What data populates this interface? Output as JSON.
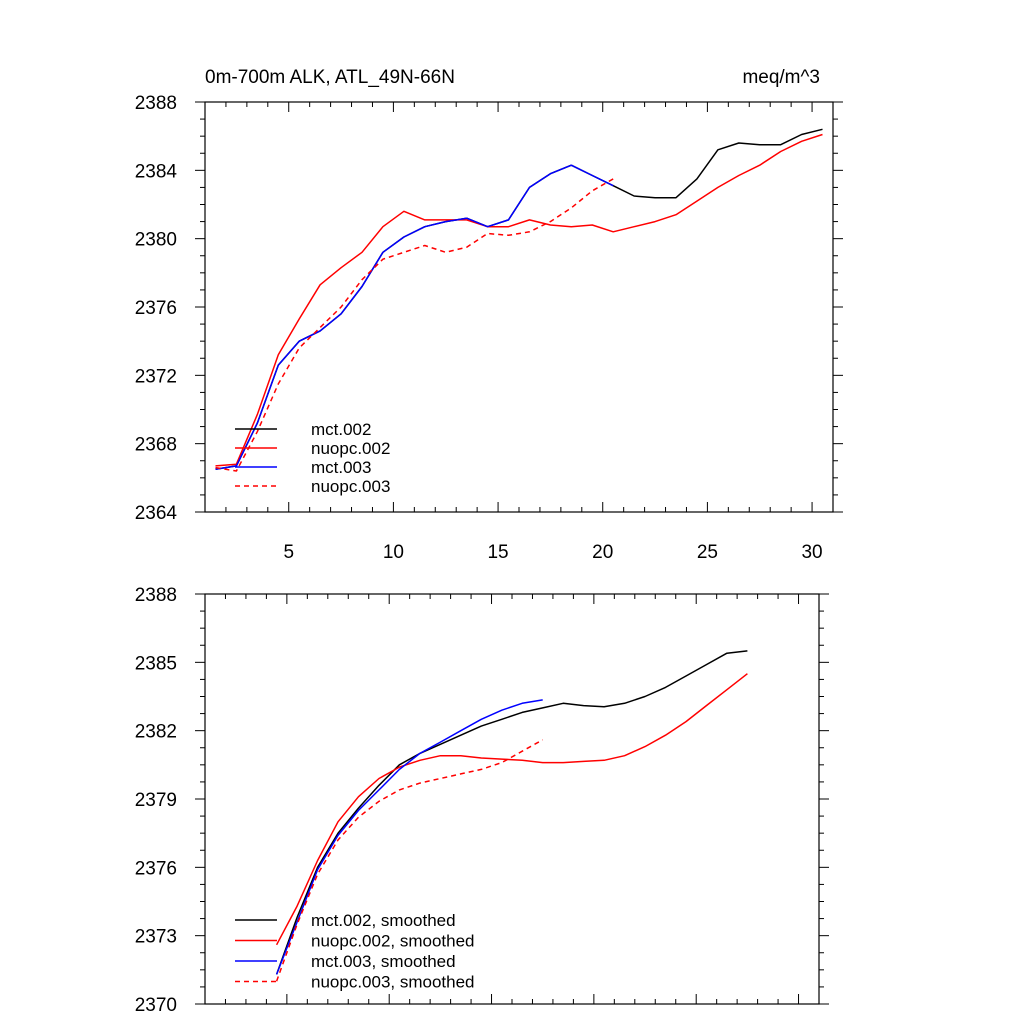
{
  "header": {
    "title": "0m-700m ALK, ATL_49N-66N",
    "units": "meq/m^3"
  },
  "colors": {
    "mct.002": "#000000",
    "nuopc.002": "#ff0000",
    "mct.003": "#0000ff",
    "nuopc.003": "#ff0000"
  },
  "chart_data": [
    {
      "type": "line",
      "title": "0m-700m ALK, ATL_49N-66N",
      "units": "meq/m^3",
      "xlim": [
        1,
        31
      ],
      "ylim": [
        2364,
        2388
      ],
      "xticks": [
        5,
        10,
        15,
        20,
        25,
        30
      ],
      "yticks": [
        2364,
        2368,
        2372,
        2376,
        2380,
        2384,
        2388
      ],
      "legend_position": "bottom-left",
      "series": [
        {
          "name": "mct.002",
          "color": "#000000",
          "dash": "solid",
          "x": [
            1.5,
            2.5,
            3.5,
            4.5,
            5.5,
            6.5,
            7.5,
            8.5,
            9.5,
            10.5,
            11.5,
            12.5,
            13.5,
            14.5,
            15.5,
            16.5,
            17.5,
            18.5,
            19.5,
            20.5,
            21.5,
            22.5,
            23.5,
            24.5,
            25.5,
            26.5,
            27.5,
            28.5,
            29.5,
            30.5
          ],
          "values": [
            2366.5,
            2366.7,
            2369.2,
            2372.6,
            2374.0,
            2374.6,
            2375.6,
            2377.2,
            2379.2,
            2380.1,
            2380.7,
            2381.0,
            2381.2,
            2380.7,
            2381.1,
            2383.0,
            2383.8,
            2384.3,
            2383.7,
            2383.1,
            2382.5,
            2382.4,
            2382.4,
            2383.5,
            2385.2,
            2385.6,
            2385.5,
            2385.5,
            2386.1,
            2386.4
          ]
        },
        {
          "name": "nuopc.002",
          "color": "#ff0000",
          "dash": "solid",
          "x": [
            1.5,
            2.5,
            3.5,
            4.5,
            5.5,
            6.5,
            7.5,
            8.5,
            9.5,
            10.5,
            11.5,
            12.5,
            13.5,
            14.5,
            15.5,
            16.5,
            17.5,
            18.5,
            19.5,
            20.5,
            21.5,
            22.5,
            23.5,
            24.5,
            25.5,
            26.5,
            27.5,
            28.5,
            29.5,
            30.5
          ],
          "values": [
            2366.7,
            2366.8,
            2369.7,
            2373.2,
            2375.3,
            2377.3,
            2378.3,
            2379.2,
            2380.7,
            2381.6,
            2381.1,
            2381.1,
            2381.1,
            2380.7,
            2380.7,
            2381.1,
            2380.8,
            2380.7,
            2380.8,
            2380.4,
            2380.7,
            2381.0,
            2381.4,
            2382.2,
            2383.0,
            2383.7,
            2384.3,
            2385.1,
            2385.7,
            2386.1
          ]
        },
        {
          "name": "mct.003",
          "color": "#0000ff",
          "dash": "solid",
          "x": [
            1.5,
            2.5,
            3.5,
            4.5,
            5.5,
            6.5,
            7.5,
            8.5,
            9.5,
            10.5,
            11.5,
            12.5,
            13.5,
            14.5,
            15.5,
            16.5,
            17.5,
            18.5,
            19.5,
            20.5
          ],
          "values": [
            2366.5,
            2366.7,
            2369.2,
            2372.6,
            2374.0,
            2374.6,
            2375.6,
            2377.2,
            2379.2,
            2380.1,
            2380.7,
            2381.0,
            2381.2,
            2380.7,
            2381.1,
            2383.0,
            2383.8,
            2384.3,
            2383.7,
            2383.1
          ]
        },
        {
          "name": "nuopc.003",
          "color": "#ff0000",
          "dash": "dashed",
          "x": [
            1.5,
            2.5,
            3.5,
            4.5,
            5.5,
            6.5,
            7.5,
            8.5,
            9.5,
            10.5,
            11.5,
            12.5,
            13.5,
            14.5,
            15.5,
            16.5,
            17.5,
            18.5,
            19.5,
            20.5
          ],
          "values": [
            2366.6,
            2366.4,
            2368.7,
            2371.5,
            2373.6,
            2374.8,
            2376.0,
            2377.6,
            2378.8,
            2379.2,
            2379.6,
            2379.2,
            2379.5,
            2380.3,
            2380.2,
            2380.4,
            2381.0,
            2381.8,
            2382.8,
            2383.5
          ]
        }
      ]
    },
    {
      "type": "line",
      "xlim": [
        1,
        31
      ],
      "ylim": [
        2370,
        2388
      ],
      "xticks": [
        5,
        10,
        15,
        20,
        25,
        30
      ],
      "yticks": [
        2370,
        2373,
        2376,
        2379,
        2382,
        2385,
        2388
      ],
      "legend_position": "bottom-left",
      "series": [
        {
          "name": "mct.002, smoothed",
          "color": "#000000",
          "dash": "solid",
          "x": [
            4.5,
            5.5,
            6.5,
            7.5,
            8.5,
            9.5,
            10.5,
            11.5,
            12.5,
            13.5,
            14.5,
            15.5,
            16.5,
            17.5,
            18.5,
            19.5,
            20.5,
            21.5,
            22.5,
            23.5,
            24.5,
            25.5,
            26.5,
            27.5
          ],
          "values": [
            2371.3,
            2373.8,
            2376.0,
            2377.5,
            2378.6,
            2379.6,
            2380.5,
            2381.0,
            2381.4,
            2381.8,
            2382.2,
            2382.5,
            2382.8,
            2383.0,
            2383.2,
            2383.1,
            2383.05,
            2383.2,
            2383.5,
            2383.9,
            2384.4,
            2384.9,
            2385.4,
            2385.5
          ]
        },
        {
          "name": "nuopc.002, smoothed",
          "color": "#ff0000",
          "dash": "solid",
          "x": [
            4.5,
            5.5,
            6.5,
            7.5,
            8.5,
            9.5,
            10.5,
            11.5,
            12.5,
            13.5,
            14.5,
            15.5,
            16.5,
            17.5,
            18.5,
            19.5,
            20.5,
            21.5,
            22.5,
            23.5,
            24.5,
            25.5,
            26.5,
            27.5
          ],
          "values": [
            2372.6,
            2374.3,
            2376.3,
            2378.0,
            2379.1,
            2379.9,
            2380.4,
            2380.7,
            2380.9,
            2380.9,
            2380.8,
            2380.75,
            2380.7,
            2380.6,
            2380.6,
            2380.65,
            2380.7,
            2380.9,
            2381.3,
            2381.8,
            2382.4,
            2383.1,
            2383.8,
            2384.5
          ]
        },
        {
          "name": "mct.003, smoothed",
          "color": "#0000ff",
          "dash": "solid",
          "x": [
            4.5,
            5.5,
            6.5,
            7.5,
            8.5,
            9.5,
            10.5,
            11.5,
            12.5,
            13.5,
            14.5,
            15.5,
            16.5,
            17.5
          ],
          "values": [
            2371.3,
            2373.6,
            2375.9,
            2377.4,
            2378.5,
            2379.4,
            2380.3,
            2381.0,
            2381.5,
            2382.0,
            2382.5,
            2382.9,
            2383.2,
            2383.35
          ]
        },
        {
          "name": "nuopc.003, smoothed",
          "color": "#ff0000",
          "dash": "dashed",
          "x": [
            4.5,
            5.5,
            6.5,
            7.5,
            8.5,
            9.5,
            10.5,
            11.5,
            12.5,
            13.5,
            14.5,
            15.5,
            16.5,
            17.5
          ],
          "values": [
            2371.0,
            2373.5,
            2375.7,
            2377.2,
            2378.2,
            2378.9,
            2379.4,
            2379.7,
            2379.9,
            2380.1,
            2380.3,
            2380.6,
            2381.1,
            2381.6
          ]
        }
      ]
    }
  ]
}
